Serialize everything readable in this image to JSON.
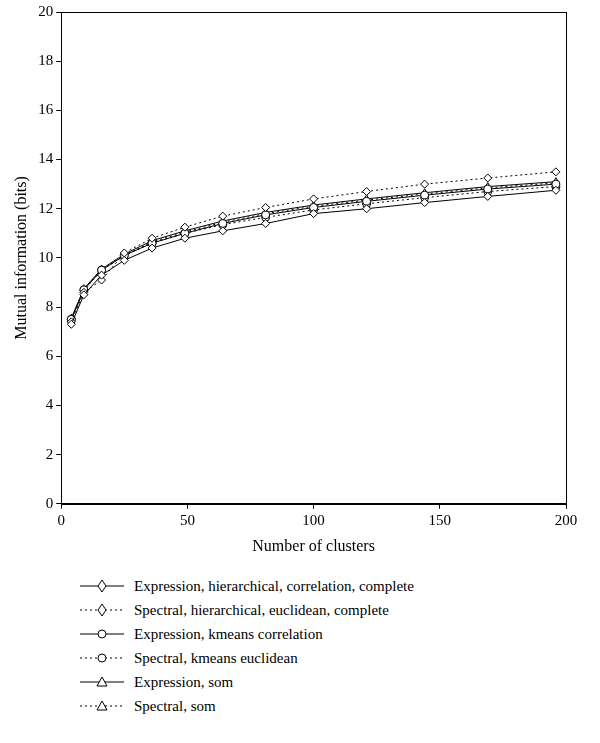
{
  "chart_data": {
    "type": "line",
    "x_label": "Number of clusters",
    "y_label": "Mutual information (bits)",
    "x": [
      4,
      9,
      16,
      25,
      36,
      49,
      64,
      81,
      100,
      121,
      144,
      169,
      196
    ],
    "xlim": [
      0,
      200
    ],
    "xticks": [
      0,
      50,
      100,
      150,
      200
    ],
    "ylim": [
      0,
      20
    ],
    "yticks": [
      0,
      2,
      4,
      6,
      8,
      10,
      12,
      14,
      16,
      18,
      20
    ],
    "grid": false,
    "legend": "bottom",
    "series": [
      {
        "name": "Expression, hierarchical, correlation, complete",
        "color": "#000000",
        "marker": "diamond",
        "line_style": "solid",
        "values": [
          7.3,
          8.5,
          9.3,
          9.9,
          10.4,
          10.8,
          11.1,
          11.4,
          11.8,
          12.0,
          12.25,
          12.5,
          12.75
        ]
      },
      {
        "name": "Spectral, hierarchical, euclidean, complete",
        "color": "#000000",
        "marker": "diamond",
        "line_style": "dotted",
        "values": [
          7.4,
          8.6,
          9.1,
          10.2,
          10.8,
          11.25,
          11.7,
          12.05,
          12.4,
          12.7,
          13.0,
          13.25,
          13.5
        ]
      },
      {
        "name": "Expression, kmeans correlation",
        "color": "#000000",
        "marker": "circle",
        "line_style": "solid",
        "values": [
          7.5,
          8.7,
          9.5,
          10.1,
          10.6,
          11.0,
          11.4,
          11.75,
          12.05,
          12.3,
          12.55,
          12.8,
          13.0
        ]
      },
      {
        "name": "Spectral, kmeans euclidean",
        "color": "#000000",
        "marker": "circle",
        "line_style": "dotted",
        "values": [
          7.5,
          8.7,
          9.5,
          10.1,
          10.6,
          11.0,
          11.35,
          11.65,
          11.95,
          12.2,
          12.45,
          12.7,
          12.9
        ]
      },
      {
        "name": "Expression, som",
        "color": "#000000",
        "marker": "triangle",
        "line_style": "solid",
        "values": [
          7.55,
          8.75,
          9.55,
          10.15,
          10.7,
          11.1,
          11.5,
          11.85,
          12.15,
          12.4,
          12.65,
          12.9,
          13.1
        ]
      },
      {
        "name": "Spectral, som",
        "color": "#000000",
        "marker": "triangle",
        "line_style": "dotted",
        "values": [
          7.5,
          8.7,
          9.5,
          10.1,
          10.65,
          11.05,
          11.45,
          11.8,
          12.1,
          12.35,
          12.6,
          12.85,
          13.05
        ]
      }
    ]
  }
}
